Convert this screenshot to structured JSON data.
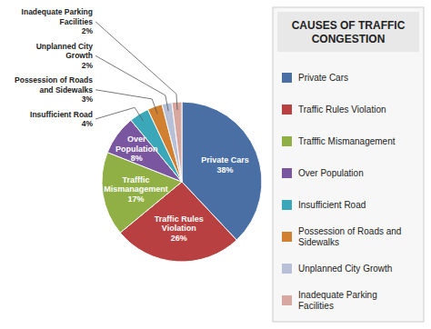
{
  "chart_data": {
    "type": "pie",
    "title": "CAUSES OF TRAFFIC\nCONGESTION",
    "categories": [
      "Private Cars",
      "Traffic Rules Violation",
      "Trafffic Mismanagement",
      "Over Population",
      "Insufficient Road",
      "Possession of Roads and\nSidewalks",
      "Unplanned City Growth",
      "Inadequate Parking\nFacilities"
    ],
    "values": [
      38,
      26,
      17,
      8,
      4,
      3,
      2,
      2
    ],
    "value_labels": [
      "38%",
      "26%",
      "17%",
      "8%",
      "4%",
      "3%",
      "2%",
      "2%"
    ],
    "slice_labels": [
      "Private Cars",
      "Traffic Rules\nViolation",
      "Trafffic\nMismanagement",
      "Over\nPopulation",
      "Insufficient Road",
      "Possession of Roads\nand Sidewalks",
      "Unplanned City\nGrowth",
      "Inadequate Parking\nFacilities"
    ],
    "colors": [
      "#4a6fa5",
      "#b84040",
      "#90b045",
      "#7a55a0",
      "#3aa8b8",
      "#d08030",
      "#b8c0d8",
      "#d8a8a0"
    ],
    "data_labels": true,
    "legend": "right"
  }
}
